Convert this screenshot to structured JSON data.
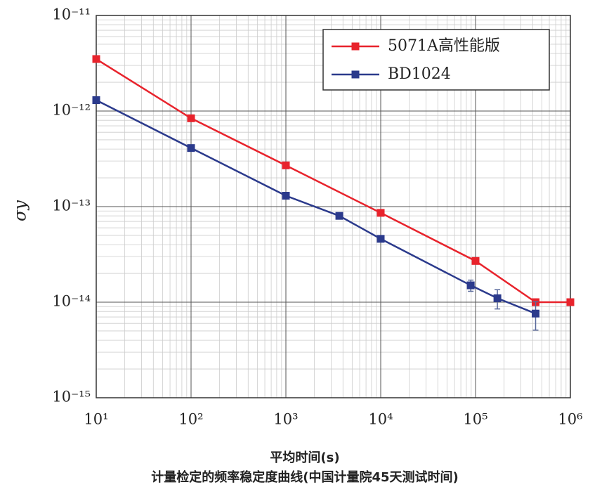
{
  "chart_data": {
    "type": "line",
    "xlabel": "平均时间(s)",
    "caption": "计量检定的频率稳定度曲线(中国计量院45天测试时间)",
    "ylabel": "σy",
    "xscale": "log",
    "yscale": "log",
    "grid": true,
    "legend": "upper right",
    "xlim": [
      10,
      1000000
    ],
    "ylim": [
      1e-15,
      1e-11
    ],
    "xticks": [
      {
        "value": 10,
        "label": "10¹"
      },
      {
        "value": 100,
        "label": "10²"
      },
      {
        "value": 1000,
        "label": "10³"
      },
      {
        "value": 10000,
        "label": "10⁴"
      },
      {
        "value": 100000,
        "label": "10⁵"
      },
      {
        "value": 1000000,
        "label": "10⁶"
      }
    ],
    "yticks": [
      {
        "value": 1e-15,
        "label": "10⁻¹⁵"
      },
      {
        "value": 1e-14,
        "label": "10⁻¹⁴"
      },
      {
        "value": 1e-13,
        "label": "10⁻¹³"
      },
      {
        "value": 1e-12,
        "label": "10⁻¹²"
      },
      {
        "value": 1e-11,
        "label": "10⁻¹¹"
      }
    ],
    "series": [
      {
        "name": "5071A高性能版",
        "color": "#e8232c",
        "x": [
          10,
          100,
          1000,
          10000,
          100000,
          430000,
          1000000
        ],
        "values": [
          3.5e-12,
          8.4e-13,
          2.7e-13,
          8.6e-14,
          2.7e-14,
          1e-14,
          1e-14
        ]
      },
      {
        "name": "BD1024",
        "color": "#2b3a8c",
        "x": [
          10,
          100,
          1000,
          3660,
          10000,
          89000,
          170000,
          430000
        ],
        "values": [
          1.3e-12,
          4.1e-13,
          1.3e-13,
          8e-14,
          4.6e-14,
          1.5e-14,
          1.1e-14,
          7.6e-15
        ],
        "errors": [
          null,
          null,
          null,
          null,
          null,
          2e-15,
          2.5e-15,
          2.5e-15
        ]
      }
    ]
  }
}
